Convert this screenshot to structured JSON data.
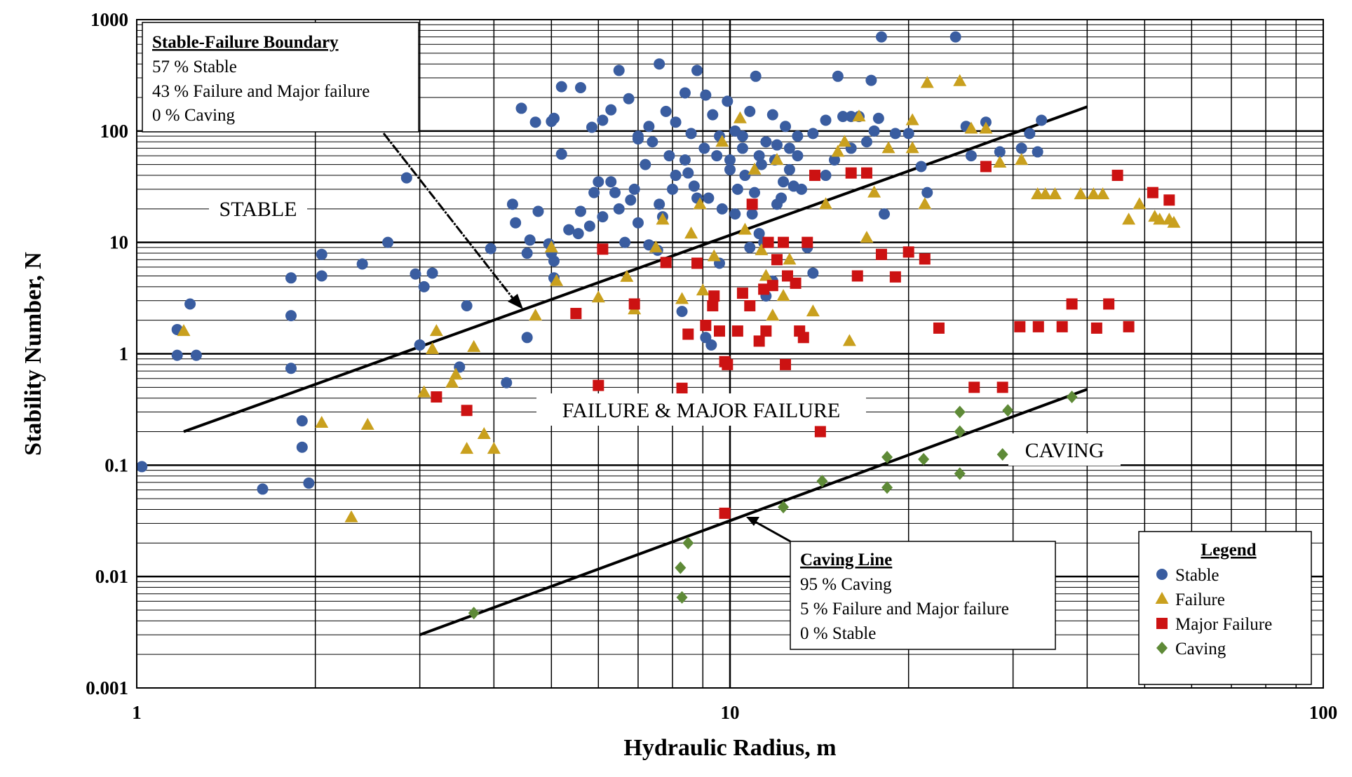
{
  "chart_data": {
    "type": "scatter",
    "xscale": "log",
    "yscale": "log",
    "xlim": [
      1,
      100
    ],
    "ylim": [
      0.001,
      1000
    ],
    "xlabel": "Hydraulic Radius, m",
    "ylabel": "Stability Number, N",
    "x_ticks": [
      "1",
      "10",
      "100"
    ],
    "y_ticks": [
      "0.001",
      "0.01",
      "0.1",
      "1",
      "10",
      "100",
      "1000"
    ],
    "grid": true,
    "colors": {
      "Stable": "#3A5DA0",
      "Failure": "#C9A01E",
      "Major Failure": "#CC1212",
      "Caving": "#5E8A37"
    },
    "legend": {
      "title": "Legend",
      "position": "bottom-right",
      "entries": [
        "Stable",
        "Failure",
        "Major Failure",
        "Caving"
      ]
    },
    "region_labels": [
      "STABLE",
      "FAILURE & MAJOR FAILURE",
      "CAVING"
    ],
    "annotations": [
      {
        "title": "Stable-Failure Boundary",
        "lines": [
          "57 % Stable",
          "43 % Failure and Major failure",
          "0 % Caving"
        ]
      },
      {
        "title": "Caving Line",
        "lines": [
          "95 % Caving",
          "5 % Failure and Major failure",
          "0 % Stable"
        ]
      }
    ],
    "boundary_lines": [
      {
        "label": "Stable-Failure Boundary",
        "x": [
          1.2,
          40
        ],
        "y": [
          0.2,
          165
        ]
      },
      {
        "label": "Caving Line",
        "x": [
          3,
          40
        ],
        "y": [
          0.003,
          0.48
        ]
      }
    ],
    "series": [
      {
        "name": "Stable",
        "marker": "circle",
        "points": [
          [
            1.02,
            0.097
          ],
          [
            1.17,
            1.65
          ],
          [
            1.17,
            0.97
          ],
          [
            1.23,
            2.8
          ],
          [
            1.26,
            0.97
          ],
          [
            1.63,
            0.061
          ],
          [
            1.82,
            0.74
          ],
          [
            1.82,
            2.2
          ],
          [
            1.82,
            4.8
          ],
          [
            1.9,
            0.25
          ],
          [
            1.9,
            0.145
          ],
          [
            1.95,
            0.069
          ],
          [
            2.05,
            5.0
          ],
          [
            2.05,
            7.8
          ],
          [
            2.4,
            6.4
          ],
          [
            2.65,
            10.0
          ],
          [
            2.85,
            38
          ],
          [
            2.95,
            5.2
          ],
          [
            3.0,
            1.2
          ],
          [
            3.05,
            4.0
          ],
          [
            3.15,
            5.3
          ],
          [
            3.5,
            0.76
          ],
          [
            3.6,
            2.7
          ],
          [
            3.95,
            8.8
          ],
          [
            4.2,
            0.55
          ],
          [
            4.3,
            22
          ],
          [
            4.35,
            15
          ],
          [
            4.55,
            1.4
          ],
          [
            4.55,
            8.0
          ],
          [
            4.6,
            10.5
          ],
          [
            4.75,
            19
          ],
          [
            4.95,
            9.7
          ],
          [
            5.0,
            8.0
          ],
          [
            5.05,
            6.8
          ],
          [
            5.05,
            4.8
          ],
          [
            5.2,
            62
          ],
          [
            5.35,
            13
          ],
          [
            5.55,
            12
          ],
          [
            5.6,
            19
          ],
          [
            5.8,
            14
          ],
          [
            5.9,
            28
          ],
          [
            6.1,
            17
          ],
          [
            6.3,
            35
          ],
          [
            6.5,
            20
          ],
          [
            6.65,
            10
          ],
          [
            6.8,
            24
          ],
          [
            7.0,
            15
          ],
          [
            7.3,
            9.5
          ],
          [
            7.55,
            8.5
          ],
          [
            7.7,
            17
          ],
          [
            8.0,
            30
          ],
          [
            8.3,
            2.4
          ],
          [
            8.5,
            42
          ],
          [
            8.8,
            25
          ],
          [
            9.1,
            1.4
          ],
          [
            9.3,
            1.2
          ],
          [
            9.6,
            6.5
          ],
          [
            10.0,
            55
          ],
          [
            10.2,
            18
          ],
          [
            10.5,
            70
          ],
          [
            10.8,
            9.0
          ],
          [
            11.0,
            28
          ],
          [
            11.2,
            12
          ],
          [
            11.5,
            3.3
          ],
          [
            11.8,
            4.5
          ],
          [
            12.0,
            22
          ],
          [
            12.3,
            35
          ],
          [
            12.6,
            45
          ],
          [
            13.0,
            60
          ],
          [
            13.5,
            9.0
          ],
          [
            13.8,
            5.3
          ],
          [
            14.5,
            40
          ],
          [
            15.0,
            55
          ],
          [
            16.0,
            70
          ],
          [
            17.0,
            80
          ],
          [
            17.5,
            100
          ],
          [
            18.0,
            700
          ],
          [
            18.2,
            18
          ],
          [
            19.0,
            95
          ],
          [
            20.0,
            95
          ],
          [
            21.0,
            48
          ],
          [
            21.5,
            28
          ],
          [
            24.0,
            700
          ],
          [
            25.0,
            110
          ],
          [
            25.5,
            60
          ],
          [
            27.0,
            120
          ],
          [
            28.5,
            65
          ],
          [
            31.0,
            70
          ],
          [
            32.0,
            95
          ],
          [
            33.0,
            65
          ],
          [
            33.5,
            125
          ],
          [
            5.0,
            122
          ],
          [
            5.2,
            250
          ],
          [
            5.6,
            245
          ],
          [
            5.85,
            108
          ],
          [
            6.1,
            125
          ],
          [
            6.3,
            155
          ],
          [
            6.5,
            350
          ],
          [
            6.75,
            195
          ],
          [
            7.0,
            85
          ],
          [
            7.3,
            110
          ],
          [
            7.6,
            400
          ],
          [
            7.8,
            150
          ],
          [
            8.1,
            120
          ],
          [
            8.4,
            220
          ],
          [
            8.6,
            95
          ],
          [
            8.8,
            350
          ],
          [
            9.1,
            210
          ],
          [
            9.35,
            140
          ],
          [
            9.6,
            90
          ],
          [
            9.9,
            185
          ],
          [
            10.2,
            100
          ],
          [
            10.5,
            90
          ],
          [
            10.8,
            150
          ],
          [
            11.05,
            310
          ],
          [
            11.2,
            60
          ],
          [
            11.5,
            80
          ],
          [
            11.8,
            140
          ],
          [
            12.0,
            75
          ],
          [
            12.4,
            110
          ],
          [
            12.6,
            70
          ],
          [
            13.0,
            90
          ],
          [
            13.8,
            95
          ],
          [
            14.5,
            125
          ],
          [
            15.2,
            310
          ],
          [
            16.5,
            135
          ],
          [
            17.3,
            285
          ],
          [
            16.0,
            135
          ],
          [
            15.5,
            135
          ],
          [
            17.8,
            130
          ],
          [
            4.7,
            120
          ],
          [
            4.45,
            160
          ],
          [
            5.05,
            130
          ],
          [
            7.0,
            90
          ],
          [
            7.4,
            80
          ],
          [
            7.9,
            60
          ],
          [
            8.4,
            55
          ],
          [
            9.05,
            70
          ],
          [
            9.5,
            60
          ],
          [
            10.0,
            45
          ],
          [
            10.6,
            40
          ],
          [
            11.3,
            50
          ],
          [
            11.9,
            55
          ],
          [
            12.2,
            25
          ],
          [
            12.8,
            32
          ],
          [
            13.2,
            30
          ],
          [
            6.0,
            35
          ],
          [
            6.4,
            28
          ],
          [
            6.9,
            30
          ],
          [
            7.2,
            50
          ],
          [
            7.6,
            22
          ],
          [
            8.1,
            40
          ],
          [
            8.7,
            32
          ],
          [
            9.2,
            25
          ],
          [
            9.7,
            20
          ],
          [
            10.3,
            30
          ],
          [
            10.9,
            18
          ],
          [
            11.4,
            10
          ]
        ]
      },
      {
        "name": "Failure",
        "marker": "triangle",
        "points": [
          [
            1.2,
            1.6
          ],
          [
            2.05,
            0.24
          ],
          [
            2.3,
            0.034
          ],
          [
            2.45,
            0.23
          ],
          [
            3.05,
            0.45
          ],
          [
            3.15,
            1.1
          ],
          [
            3.2,
            1.6
          ],
          [
            3.4,
            0.55
          ],
          [
            3.45,
            0.65
          ],
          [
            3.6,
            0.14
          ],
          [
            3.7,
            1.15
          ],
          [
            3.85,
            0.19
          ],
          [
            4.0,
            0.14
          ],
          [
            4.7,
            2.2
          ],
          [
            5.1,
            4.5
          ],
          [
            5.0,
            9.0
          ],
          [
            6.0,
            3.2
          ],
          [
            6.7,
            4.9
          ],
          [
            6.9,
            2.5
          ],
          [
            7.5,
            9.0
          ],
          [
            7.7,
            16
          ],
          [
            8.3,
            3.1
          ],
          [
            8.6,
            12
          ],
          [
            8.9,
            22
          ],
          [
            9.0,
            3.7
          ],
          [
            9.4,
            7.5
          ],
          [
            9.7,
            80
          ],
          [
            10.4,
            130
          ],
          [
            10.6,
            13
          ],
          [
            11.0,
            45
          ],
          [
            11.3,
            8.5
          ],
          [
            11.5,
            5.0
          ],
          [
            11.8,
            2.2
          ],
          [
            12.0,
            55
          ],
          [
            12.3,
            3.3
          ],
          [
            12.6,
            7.0
          ],
          [
            13.8,
            2.4
          ],
          [
            14.5,
            22
          ],
          [
            15.2,
            65
          ],
          [
            15.6,
            80
          ],
          [
            15.9,
            1.3
          ],
          [
            16.5,
            135
          ],
          [
            17.0,
            11
          ],
          [
            17.5,
            28
          ],
          [
            18.5,
            70
          ],
          [
            20.3,
            125
          ],
          [
            20.3,
            70
          ],
          [
            21.3,
            22
          ],
          [
            21.5,
            270
          ],
          [
            24.4,
            280
          ],
          [
            25.5,
            105
          ],
          [
            27.0,
            105
          ],
          [
            28.5,
            52
          ],
          [
            31.0,
            55
          ],
          [
            33.0,
            27
          ],
          [
            34.0,
            27
          ],
          [
            35.3,
            27
          ],
          [
            39.0,
            27
          ],
          [
            41.0,
            27
          ],
          [
            42.5,
            27
          ],
          [
            47.0,
            16
          ],
          [
            49.0,
            22
          ],
          [
            52.0,
            17
          ],
          [
            53.0,
            16
          ],
          [
            55.0,
            16
          ],
          [
            56.0,
            15
          ]
        ]
      },
      {
        "name": "Major Failure",
        "marker": "square",
        "points": [
          [
            3.2,
            0.41
          ],
          [
            3.6,
            0.31
          ],
          [
            5.5,
            2.3
          ],
          [
            6.0,
            0.52
          ],
          [
            6.1,
            8.7
          ],
          [
            6.9,
            2.8
          ],
          [
            7.8,
            6.6
          ],
          [
            8.3,
            0.49
          ],
          [
            8.5,
            1.5
          ],
          [
            8.8,
            6.5
          ],
          [
            9.1,
            1.8
          ],
          [
            9.35,
            2.7
          ],
          [
            9.4,
            3.3
          ],
          [
            9.6,
            1.6
          ],
          [
            9.8,
            0.85
          ],
          [
            9.9,
            0.8
          ],
          [
            10.3,
            1.6
          ],
          [
            10.5,
            3.5
          ],
          [
            10.8,
            2.7
          ],
          [
            10.9,
            22
          ],
          [
            11.2,
            1.3
          ],
          [
            11.4,
            3.8
          ],
          [
            11.5,
            1.6
          ],
          [
            11.6,
            10
          ],
          [
            11.8,
            4.1
          ],
          [
            12.0,
            7.0
          ],
          [
            12.3,
            10
          ],
          [
            12.4,
            0.8
          ],
          [
            12.5,
            5.0
          ],
          [
            12.9,
            4.3
          ],
          [
            13.1,
            1.6
          ],
          [
            13.3,
            1.4
          ],
          [
            13.5,
            10
          ],
          [
            13.9,
            40
          ],
          [
            14.2,
            0.2
          ],
          [
            16.0,
            42
          ],
          [
            16.4,
            5.0
          ],
          [
            17.0,
            42
          ],
          [
            18.0,
            7.8
          ],
          [
            19.0,
            4.9
          ],
          [
            20.0,
            8.2
          ],
          [
            21.3,
            7.1
          ],
          [
            22.5,
            1.7
          ],
          [
            25.8,
            0.5
          ],
          [
            27.0,
            48
          ],
          [
            28.8,
            0.5
          ],
          [
            30.8,
            1.75
          ],
          [
            33.1,
            1.75
          ],
          [
            36.3,
            1.75
          ],
          [
            37.7,
            2.8
          ],
          [
            41.5,
            1.7
          ],
          [
            43.5,
            2.8
          ],
          [
            45.0,
            40
          ],
          [
            47.0,
            1.75
          ],
          [
            51.6,
            28
          ],
          [
            55.0,
            24
          ],
          [
            9.8,
            0.037
          ]
        ]
      },
      {
        "name": "Caving",
        "marker": "diamond",
        "points": [
          [
            3.7,
            0.0047
          ],
          [
            8.25,
            0.012
          ],
          [
            8.3,
            0.0065
          ],
          [
            8.5,
            0.02
          ],
          [
            12.3,
            0.042
          ],
          [
            14.3,
            0.072
          ],
          [
            18.4,
            0.118
          ],
          [
            18.4,
            0.063
          ],
          [
            21.2,
            0.113
          ],
          [
            24.4,
            0.3
          ],
          [
            24.4,
            0.2
          ],
          [
            24.4,
            0.084
          ],
          [
            28.8,
            0.125
          ],
          [
            29.4,
            0.31
          ],
          [
            37.7,
            0.41
          ]
        ]
      }
    ]
  }
}
